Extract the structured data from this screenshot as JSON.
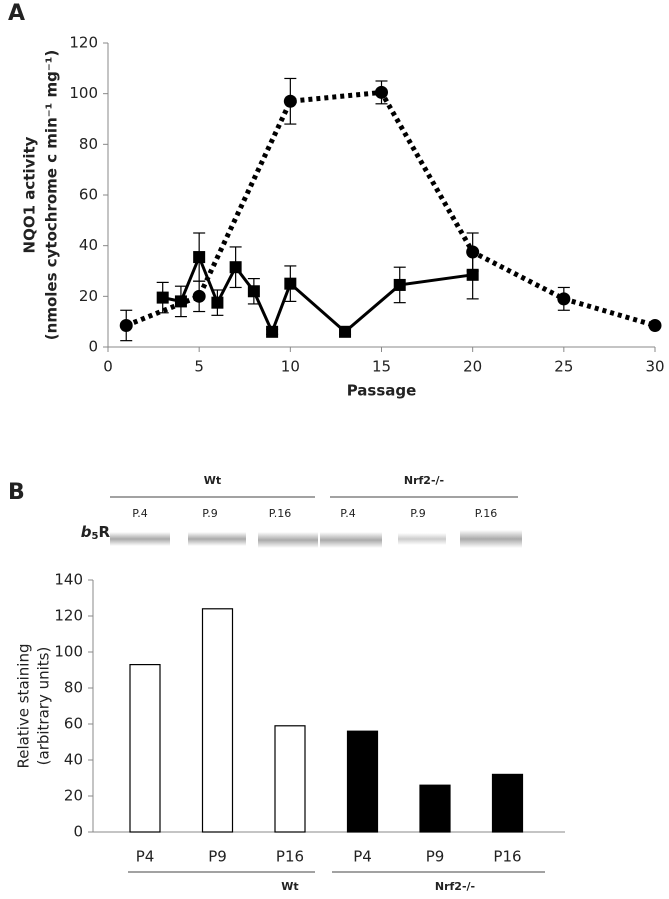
{
  "chart_data": [
    {
      "type": "line",
      "panel_label": "A",
      "xlabel": "Passage",
      "ylabel": [
        "NQO1 activity",
        "(nmoles cytochrome c min⁻¹ mg⁻¹)"
      ],
      "xlim": [
        0,
        30
      ],
      "xticks": [
        0,
        5,
        10,
        15,
        20,
        25,
        30
      ],
      "ylim": [
        0,
        120
      ],
      "yticks": [
        0,
        20,
        40,
        60,
        80,
        100,
        120
      ],
      "series": [
        {
          "color": "#000000",
          "marker": "square",
          "dash": false,
          "x": [
            3,
            4,
            5,
            6,
            7,
            8,
            9,
            10,
            13,
            16,
            20
          ],
          "values": [
            19.5,
            18,
            35.5,
            17.5,
            31.5,
            22,
            6,
            25,
            6,
            24.5,
            28.5
          ],
          "errors": [
            6,
            6,
            9.5,
            5,
            8,
            5,
            1,
            7,
            1,
            7,
            9.5
          ]
        },
        {
          "color": "#000000",
          "marker": "circle",
          "dash": true,
          "x": [
            1,
            5,
            10,
            15,
            20,
            25,
            30
          ],
          "values": [
            8.5,
            20,
            97,
            100.5,
            37.5,
            19,
            8.5
          ],
          "errors": [
            6,
            6,
            9,
            4.5,
            7.5,
            4.5,
            0.5
          ]
        }
      ]
    },
    {
      "type": "bar",
      "panel_label": "B",
      "blot_label": [
        "b",
        "5",
        "R"
      ],
      "blot_lanes": [
        "P.4",
        "P.9",
        "P.16",
        "P.4",
        "P.9",
        "P.16"
      ],
      "groups": [
        "Wt",
        "Nrf2-/-"
      ],
      "ylabel": [
        "Relative staining",
        "(arbitrary units)"
      ],
      "ylim": [
        0,
        140
      ],
      "yticks": [
        0,
        20,
        40,
        60,
        80,
        100,
        120,
        140
      ],
      "categories": [
        "P4",
        "P9",
        "P16",
        "P4",
        "P9",
        "P16"
      ],
      "values": [
        93,
        124,
        59,
        56,
        26,
        32
      ],
      "colors": [
        "#ffffff",
        "#ffffff",
        "#ffffff",
        "#000000",
        "#000000",
        "#000000"
      ]
    }
  ]
}
